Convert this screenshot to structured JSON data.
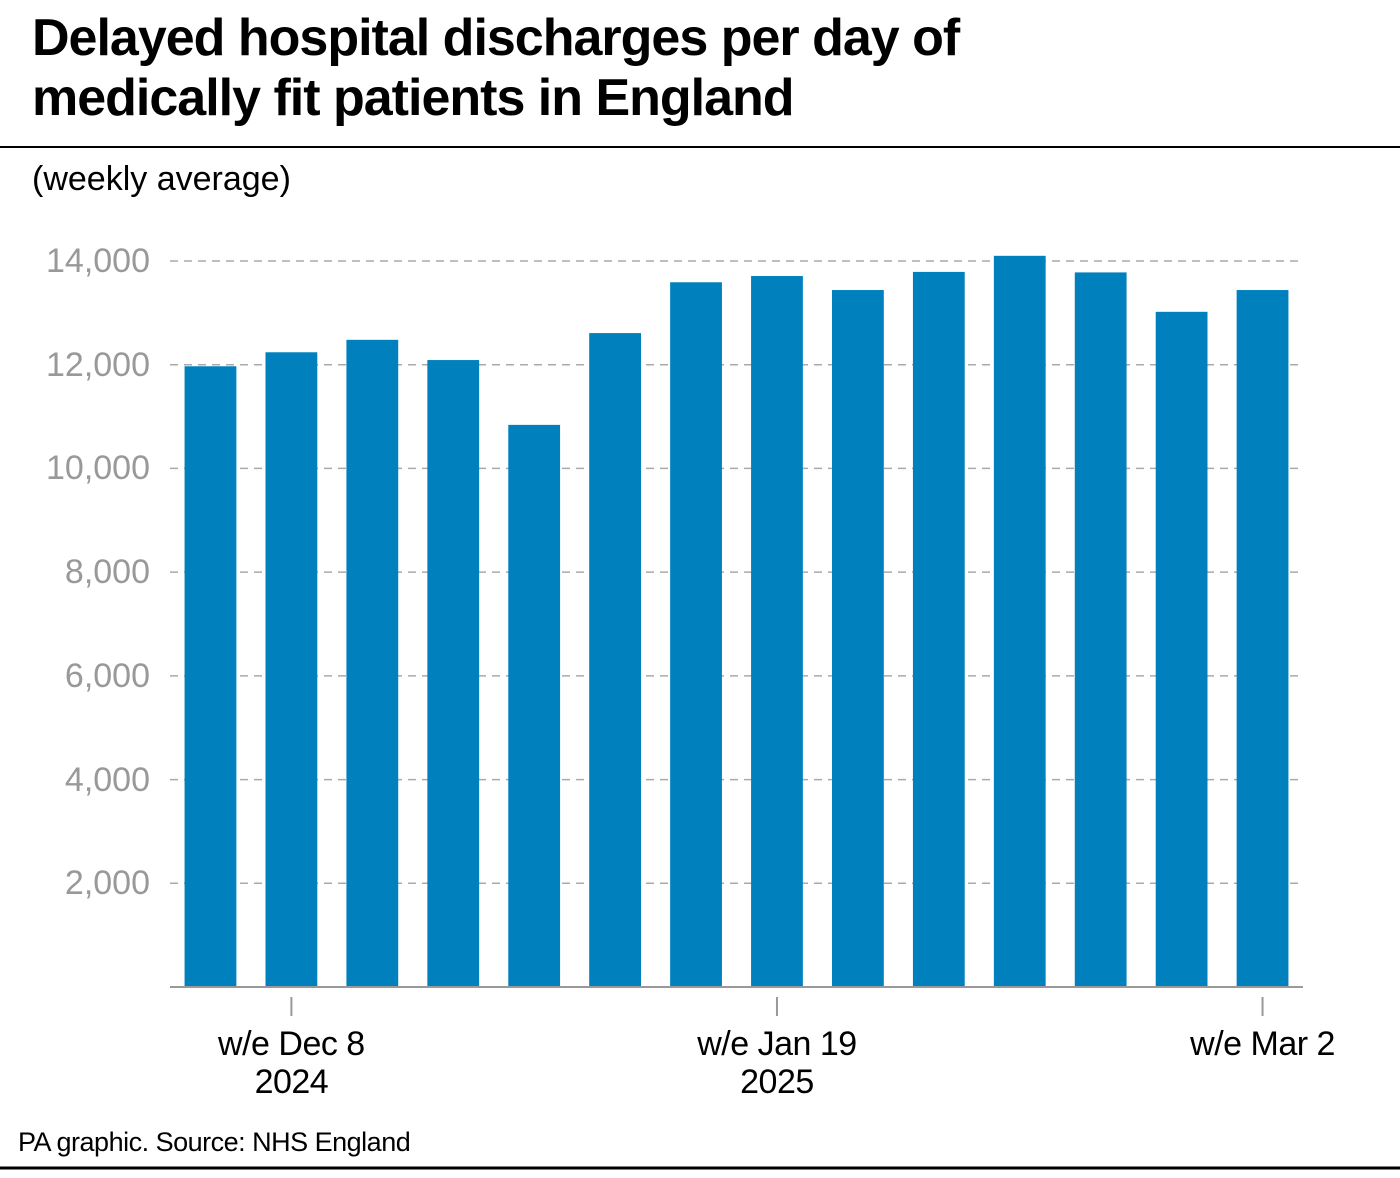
{
  "chart_data": {
    "type": "bar",
    "title": "Delayed hospital discharges per day of\nmedically fit patients in England",
    "subtitle": "(weekly average)",
    "source": "PA graphic. Source: NHS England",
    "categories": [
      null,
      "w/e Dec 8\n2024",
      null,
      null,
      null,
      null,
      null,
      "w/e Jan 19\n2025",
      null,
      null,
      null,
      null,
      null,
      "w/e Mar 2"
    ],
    "values": [
      11970,
      12240,
      12480,
      12090,
      10840,
      12610,
      13590,
      13710,
      13440,
      13790,
      14100,
      13780,
      13020,
      13440
    ],
    "color": "#0080bd",
    "ylim": [
      0,
      14000
    ],
    "yticks": [
      {
        "value": 2000,
        "label": "2,000"
      },
      {
        "value": 4000,
        "label": "4,000"
      },
      {
        "value": 6000,
        "label": "6,000"
      },
      {
        "value": 8000,
        "label": "8,000"
      },
      {
        "value": 10000,
        "label": "10,000"
      },
      {
        "value": 12000,
        "label": "12,000"
      },
      {
        "value": 14000,
        "label": "14,000"
      }
    ],
    "grid": true
  }
}
